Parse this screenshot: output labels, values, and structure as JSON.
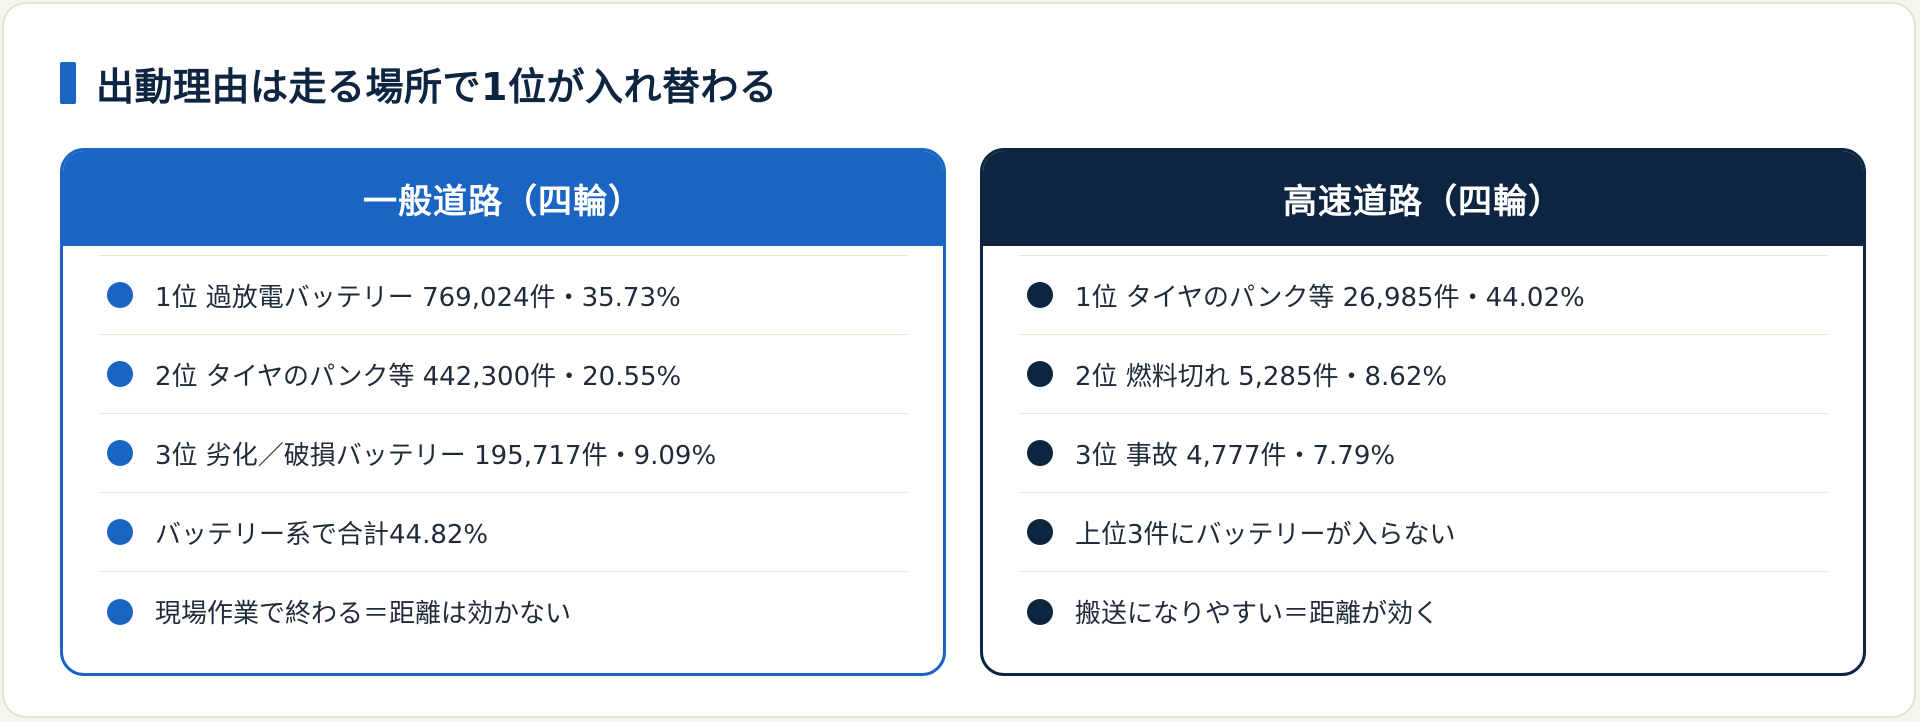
{
  "title": "出動理由は走る場所で1位が入れ替わる",
  "cards": [
    {
      "header": "一般道路（四輪）",
      "items": [
        "1位 過放電バッテリー 769,024件・35.73%",
        "2位 タイヤのパンク等 442,300件・20.55%",
        "3位 劣化／破損バッテリー 195,717件・9.09%",
        "バッテリー系で合計44.82%",
        "現場作業で終わる＝距離は効かない"
      ]
    },
    {
      "header": "高速道路（四輪）",
      "items": [
        "1位 タイヤのパンク等 26,985件・44.02%",
        "2位 燃料切れ 5,285件・8.62%",
        "3位 事故 4,777件・7.79%",
        "上位3件にバッテリーが入らない",
        "搬送になりやすい＝距離が効く"
      ]
    }
  ],
  "colors": {
    "general_accent": "#1a64c4",
    "highway_accent": "#0d2540"
  }
}
